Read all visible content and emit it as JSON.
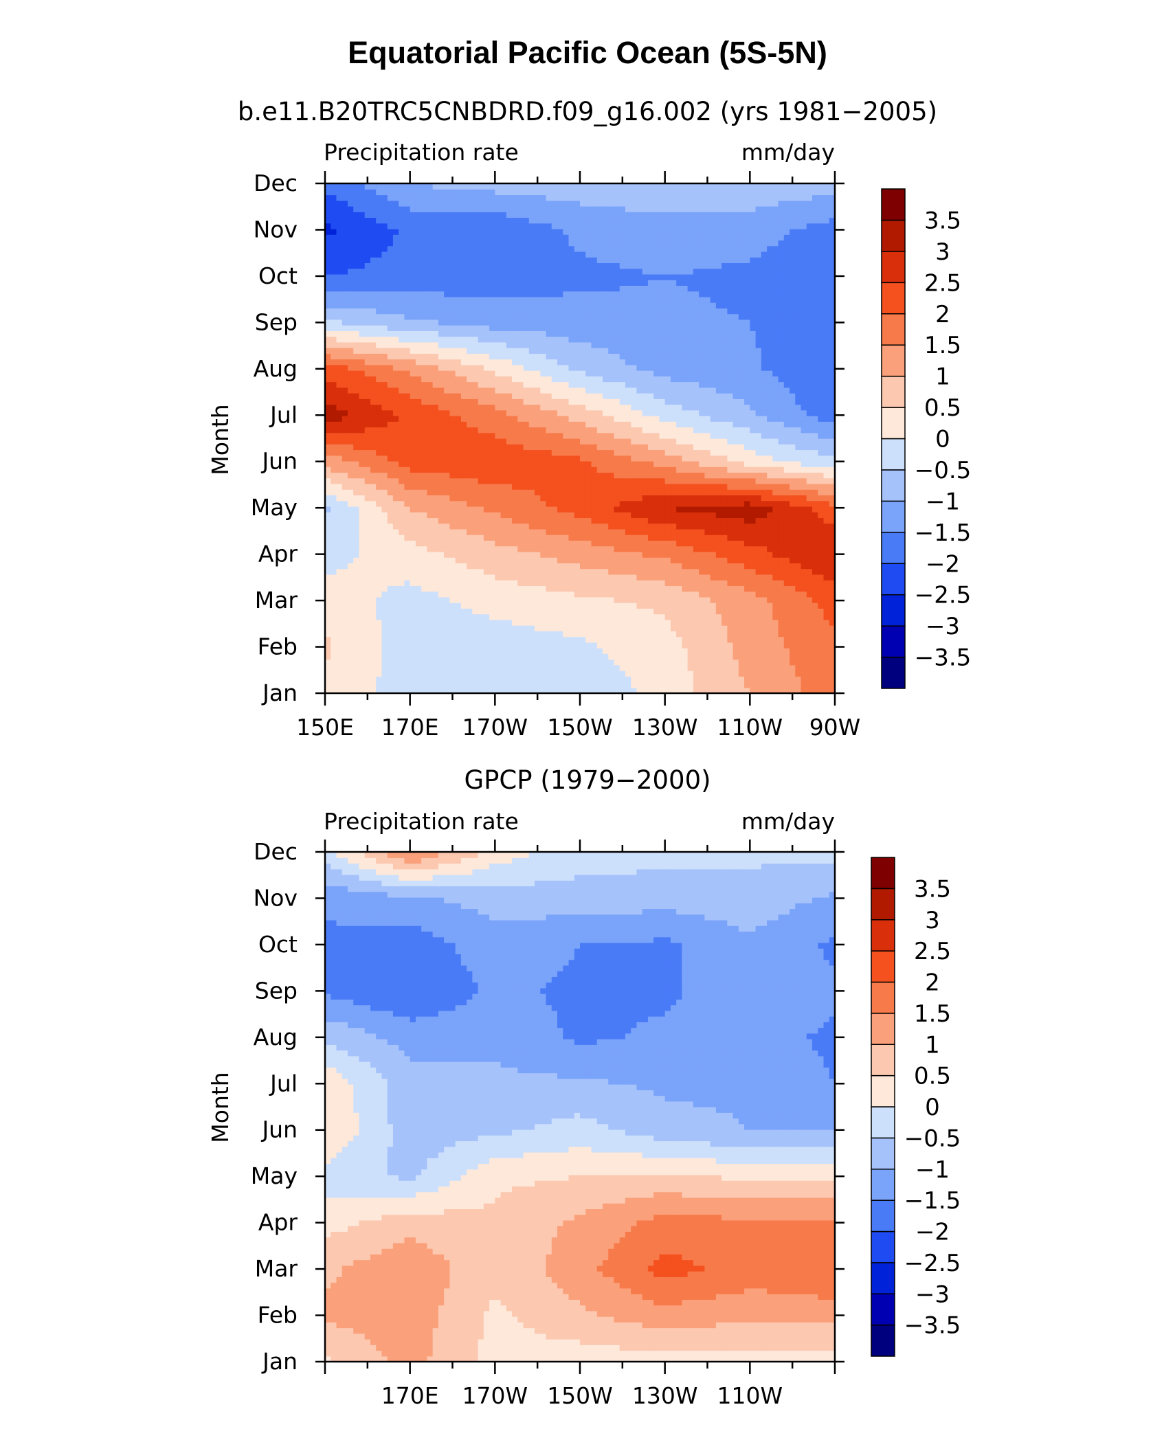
{
  "figure_title": "Equatorial Pacific Ocean (5S-5N)",
  "colors": [
    "#00007f",
    "#0000b2",
    "#0022d9",
    "#1f4cf2",
    "#4a7bf7",
    "#7aa3fa",
    "#a6c2fb",
    "#cde0fb",
    "#fde8da",
    "#fcc8b0",
    "#faa07a",
    "#f77a4a",
    "#f4511f",
    "#d92f0b",
    "#b21a00",
    "#7f0000"
  ],
  "colorbar_labels": [
    "3.5",
    "3",
    "2.5",
    "2",
    "1.5",
    "1",
    "0.5",
    "0",
    "−0.5",
    "−1",
    "−1.5",
    "−2",
    "−2.5",
    "−3",
    "−3.5"
  ],
  "panels": [
    {
      "subtitle": "b.e11.B20TRC5CNBDRD.f09_g16.002 (yrs 1981−2005)",
      "left_label": "Precipitation rate",
      "right_label": "mm/day",
      "ylabel": "Month",
      "months": [
        "Jan",
        "Feb",
        "Mar",
        "Apr",
        "May",
        "Jun",
        "Jul",
        "Aug",
        "Sep",
        "Oct",
        "Nov",
        "Dec"
      ],
      "x_ticks": [
        "150E",
        "170E",
        "170W",
        "150W",
        "130W",
        "110W",
        "90W"
      ]
    },
    {
      "subtitle": "GPCP (1979−2000)",
      "left_label": "Precipitation rate",
      "right_label": "mm/day",
      "ylabel": "Month",
      "months": [
        "Jan",
        "Feb",
        "Mar",
        "Apr",
        "May",
        "Jun",
        "Jul",
        "Aug",
        "Sep",
        "Oct",
        "Nov",
        "Dec"
      ],
      "x_ticks": [
        "170E",
        "170W",
        "150W",
        "130W",
        "110W"
      ]
    }
  ],
  "chart_data": [
    {
      "type": "heatmap",
      "title": "Equatorial Pacific Ocean (5S-5N)",
      "subtitle": "b.e11.B20TRC5CNBDRD.f09_g16.002 (yrs 1981−2005)",
      "ylabel": "Month",
      "units": "mm/day",
      "x": [
        150,
        170,
        190,
        210,
        230,
        250,
        270
      ],
      "x_tick_labels": [
        "150E",
        "170E",
        "170W",
        "150W",
        "130W",
        "110W",
        "90W"
      ],
      "y": [
        "Jan",
        "Feb",
        "Mar",
        "Apr",
        "May",
        "Jun",
        "Jul",
        "Aug",
        "Sep",
        "Oct",
        "Nov",
        "Dec"
      ],
      "z": [
        [
          0.3,
          -0.2,
          -0.3,
          -0.4,
          0.2,
          1.0,
          1.8
        ],
        [
          0.6,
          -0.3,
          -0.3,
          -0.1,
          0.3,
          1.2,
          1.9
        ],
        [
          0.3,
          -0.2,
          0.2,
          0.4,
          0.6,
          1.3,
          2.2
        ],
        [
          -0.2,
          0.3,
          0.8,
          1.2,
          1.6,
          2.3,
          3.0
        ],
        [
          -0.6,
          1.0,
          1.6,
          2.2,
          3.0,
          3.3,
          2.2
        ],
        [
          1.2,
          2.2,
          2.4,
          2.1,
          1.3,
          0.3,
          -0.4
        ],
        [
          3.3,
          2.4,
          1.7,
          0.8,
          -0.2,
          -0.9,
          -1.8
        ],
        [
          2.3,
          1.4,
          0.4,
          -0.6,
          -1.2,
          -1.4,
          -2.0
        ],
        [
          -0.4,
          -0.9,
          -1.2,
          -1.3,
          -1.4,
          -1.5,
          -2.0
        ],
        [
          -2.0,
          -1.8,
          -1.8,
          -1.6,
          -1.5,
          -1.6,
          -1.9
        ],
        [
          -2.6,
          -1.9,
          -1.9,
          -1.4,
          -1.2,
          -1.3,
          -1.7
        ],
        [
          -1.9,
          -1.0,
          -0.8,
          -0.7,
          -0.6,
          -0.6,
          -0.8
        ]
      ],
      "contour_interval": 0.5,
      "zlim": [
        -4,
        4
      ]
    },
    {
      "type": "heatmap",
      "title": "GPCP (1979−2000)",
      "ylabel": "Month",
      "units": "mm/day",
      "x": [
        150,
        170,
        190,
        210,
        230,
        250,
        270
      ],
      "x_tick_labels": [
        "170E",
        "170W",
        "150W",
        "130W",
        "110W"
      ],
      "y": [
        "Jan",
        "Feb",
        "Mar",
        "Apr",
        "May",
        "Jun",
        "Jul",
        "Aug",
        "Sep",
        "Oct",
        "Nov",
        "Dec"
      ],
      "z": [
        [
          0.4,
          1.2,
          0.3,
          0.2,
          0.3,
          0.3,
          0.2
        ],
        [
          1.1,
          1.3,
          0.4,
          0.9,
          1.3,
          1.1,
          1.2
        ],
        [
          0.9,
          1.4,
          0.6,
          1.3,
          2.2,
          1.8,
          2.0
        ],
        [
          0.3,
          0.8,
          0.6,
          1.1,
          1.7,
          1.6,
          1.6
        ],
        [
          -0.2,
          -0.6,
          0.4,
          0.5,
          0.6,
          0.4,
          0.4
        ],
        [
          0.5,
          -0.8,
          -0.6,
          -0.3,
          -0.8,
          -1.0,
          -1.0
        ],
        [
          0.4,
          -0.8,
          -0.9,
          -0.9,
          -1.1,
          -1.1,
          -1.5
        ],
        [
          -0.6,
          -1.2,
          -1.1,
          -1.6,
          -1.4,
          -1.3,
          -1.6
        ],
        [
          -1.6,
          -2.0,
          -1.4,
          -1.6,
          -1.6,
          -1.1,
          -1.4
        ],
        [
          -1.6,
          -1.8,
          -1.2,
          -1.5,
          -1.6,
          -1.1,
          -1.6
        ],
        [
          -1.4,
          -1.1,
          -0.8,
          -0.7,
          -0.8,
          -0.7,
          -1.1
        ],
        [
          -0.2,
          1.6,
          0.3,
          -0.3,
          -0.3,
          -0.4,
          -0.3
        ]
      ],
      "contour_interval": 0.5,
      "zlim": [
        -4,
        4
      ]
    }
  ]
}
